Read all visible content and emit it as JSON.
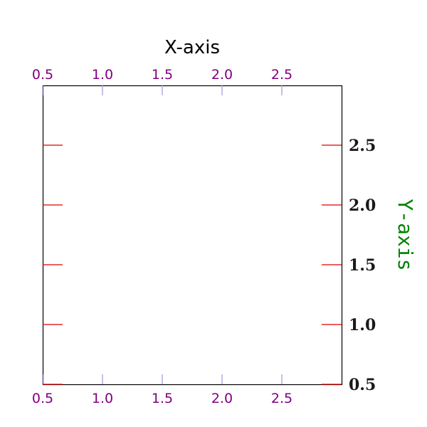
{
  "chart_data": {
    "type": "scatter",
    "title": "",
    "xlabel": "X-axis",
    "ylabel": "Y-axis",
    "xlim": [
      0.5,
      3.0
    ],
    "ylim": [
      0.5,
      3.0
    ],
    "x_axis_position": "top-and-bottom",
    "y_axis_position": "right",
    "x_ticks": [
      0.5,
      1.0,
      1.5,
      2.0,
      2.5
    ],
    "x_tick_labels": [
      "0.5",
      "1.0",
      "1.5",
      "2.0",
      "2.5"
    ],
    "y_ticks": [
      0.5,
      1.0,
      1.5,
      2.0,
      2.5
    ],
    "y_tick_labels": [
      "0.5",
      "1.0",
      "1.5",
      "2.0",
      "2.5"
    ],
    "grid": false,
    "series": [],
    "colors": {
      "x_tick_mark": "#9999dd",
      "x_tick_label": "#800080",
      "y_tick_mark": "#dd0000",
      "y_tick_label": "#1a1a1a",
      "xlabel": "#000000",
      "ylabel": "#008000",
      "frame": "#000000"
    }
  }
}
